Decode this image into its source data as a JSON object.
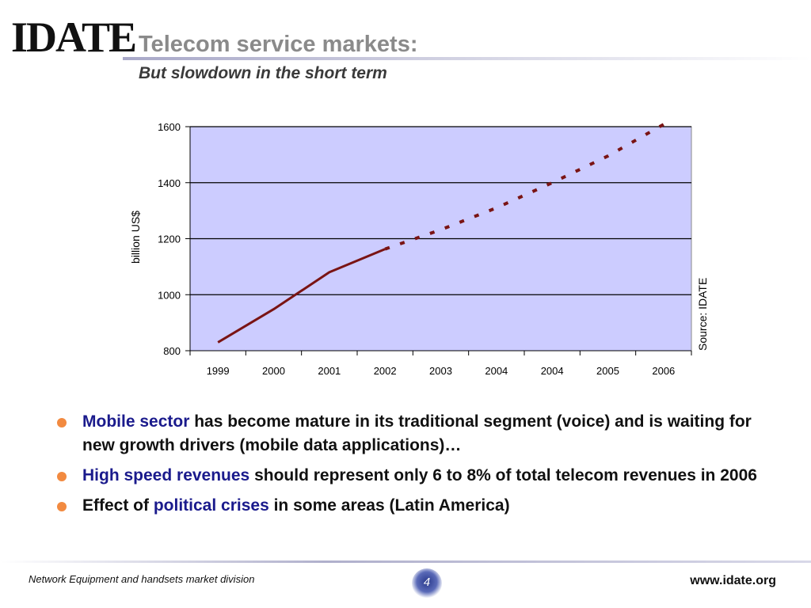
{
  "header": {
    "logo": "IDATE",
    "title": "Telecom service markets:",
    "subtitle": "But slowdown in the short term"
  },
  "chart_data": {
    "type": "line",
    "x": [
      "1999",
      "2000",
      "2001",
      "2002",
      "2003",
      "2004",
      "2004",
      "2005",
      "2006"
    ],
    "series": [
      {
        "name": "",
        "style": "solid",
        "color": "#7a1414",
        "values": [
          830,
          948,
          1080,
          1163,
          null,
          null,
          null,
          null,
          null
        ]
      },
      {
        "name": "",
        "style": "dashed",
        "color": "#7a1414",
        "values": [
          null,
          null,
          null,
          1163,
          1232,
          1310,
          1400,
          1495,
          1608
        ]
      }
    ],
    "ylim": [
      800,
      1600
    ],
    "yticks": [
      800,
      1000,
      1200,
      1400,
      1600
    ],
    "ylabel": "billion US$",
    "xlabel": "",
    "grid": true,
    "plot_background": "#ccccff",
    "source_note": "Source: IDATE"
  },
  "bullets": [
    {
      "highlight": "Mobile sector",
      "text": " has become mature in its traditional segment (voice) and is waiting for new growth drivers (mobile data applications)…"
    },
    {
      "highlight": "High speed revenues",
      "text": " should represent only 6 to 8% of total telecom revenues in 2006"
    },
    {
      "prefix": "Effect of ",
      "highlight": "political crises",
      "text": " in some areas (Latin America)"
    }
  ],
  "footer": {
    "division": "Network Equipment and handsets market division",
    "page": "4",
    "url": "www.idate.org"
  },
  "colors": {
    "bullet": "#f28a40",
    "highlight": "#1a1a8c",
    "line": "#7a1414",
    "title": "#8a8a8a"
  }
}
